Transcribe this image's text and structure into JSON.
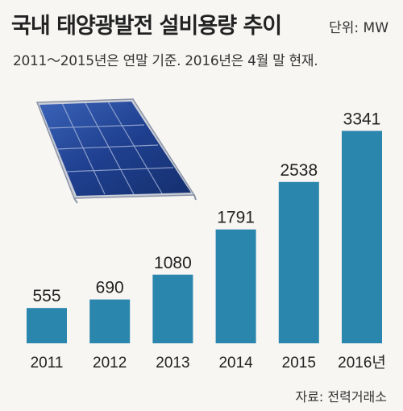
{
  "title": "국내 태양광발전 설비용량 추이",
  "unit": "단위: MW",
  "subtitle": "2011～2015년은 연말 기준. 2016년은  4월 말 현재.",
  "source": "자료: 전력거래소",
  "colors": {
    "bar": "#2b86ad",
    "background": "#f7f6f3",
    "panel": "#1d3f8c"
  },
  "illustration": "solar-panel",
  "chart_data": {
    "type": "bar",
    "title": "국내 태양광발전 설비용량 추이",
    "xlabel": "",
    "ylabel": "",
    "unit": "MW",
    "categories": [
      "2011",
      "2012",
      "2013",
      "2014",
      "2015",
      "2016년"
    ],
    "values": [
      555,
      690,
      1080,
      1791,
      2538,
      3341
    ],
    "grid": false,
    "legend": "none"
  }
}
